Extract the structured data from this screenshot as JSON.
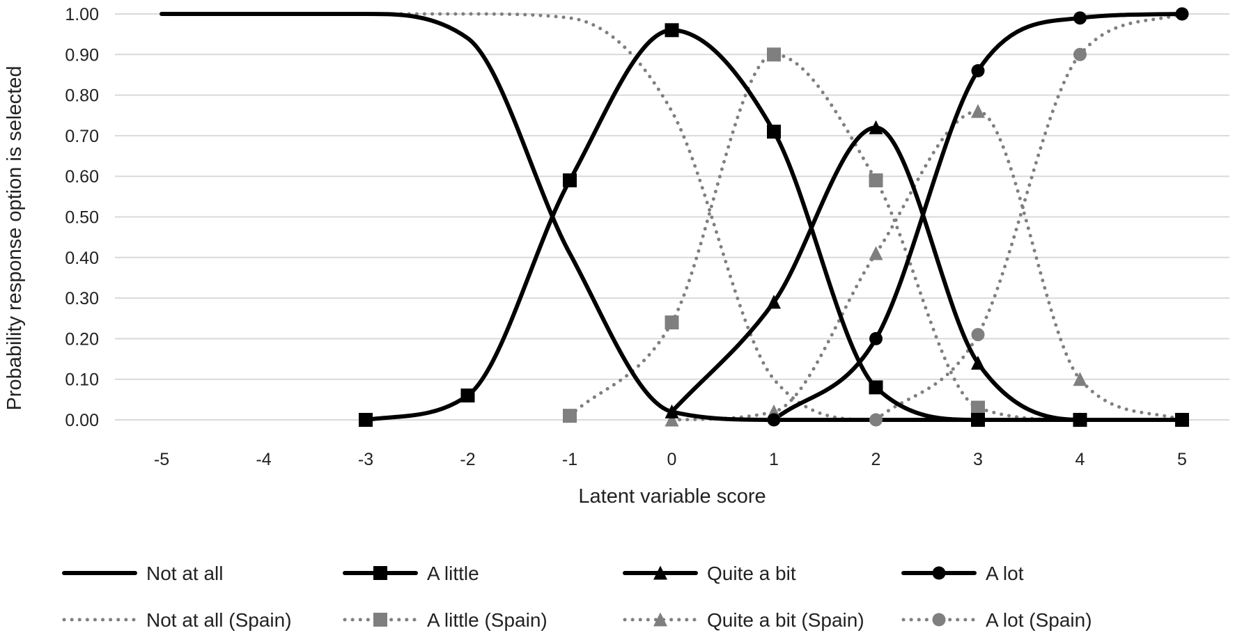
{
  "chart_data": {
    "type": "line",
    "title": "",
    "xlabel": "Latent variable score",
    "ylabel": "Probability response option is selected",
    "xlim": [
      -5,
      5
    ],
    "ylim": [
      0,
      1
    ],
    "x_ticks": [
      "-5",
      "-4",
      "-3",
      "-2",
      "-1",
      "0",
      "1",
      "2",
      "3",
      "4",
      "5"
    ],
    "y_ticks": [
      "0.00",
      "0.10",
      "0.20",
      "0.30",
      "0.40",
      "0.50",
      "0.60",
      "0.70",
      "0.80",
      "0.90",
      "1.00"
    ],
    "grid": "horizontal",
    "legend_position": "bottom",
    "series": [
      {
        "name": "Not at all",
        "style": "solid",
        "marker": "none",
        "color": "#000000",
        "x": [
          -5,
          -4,
          -3,
          -2,
          -1,
          0,
          1,
          2,
          3,
          4,
          5
        ],
        "y": [
          1.0,
          1.0,
          1.0,
          0.94,
          0.41,
          0.02,
          0.0,
          0.0,
          0.0,
          0.0,
          0.0
        ]
      },
      {
        "name": "A little",
        "style": "solid",
        "marker": "square",
        "color": "#000000",
        "x": [
          -3,
          -2,
          -1,
          0,
          1,
          2,
          3,
          4,
          5
        ],
        "y": [
          0.0,
          0.06,
          0.59,
          0.96,
          0.71,
          0.08,
          0.0,
          0.0,
          0.0
        ]
      },
      {
        "name": "Quite a bit",
        "style": "solid",
        "marker": "triangle",
        "color": "#000000",
        "x": [
          0,
          1,
          2,
          3,
          4,
          5
        ],
        "y": [
          0.02,
          0.29,
          0.72,
          0.14,
          0.0,
          0.0
        ]
      },
      {
        "name": "A lot",
        "style": "solid",
        "marker": "circle",
        "color": "#000000",
        "x": [
          1,
          2,
          3,
          4,
          5
        ],
        "y": [
          0.0,
          0.2,
          0.86,
          0.99,
          1.0
        ]
      },
      {
        "name": "Not at all (Spain)",
        "style": "dotted",
        "marker": "none",
        "color": "#7f7f7f",
        "x": [
          -5,
          -4,
          -3,
          -2,
          -1,
          0,
          1,
          2,
          3,
          4,
          5
        ],
        "y": [
          1.0,
          1.0,
          1.0,
          1.0,
          0.99,
          0.76,
          0.1,
          0.0,
          0.0,
          0.0,
          0.0
        ]
      },
      {
        "name": "A little (Spain)",
        "style": "dotted",
        "marker": "square",
        "color": "#7f7f7f",
        "x": [
          -1,
          0,
          1,
          2,
          3,
          4,
          5
        ],
        "y": [
          0.01,
          0.24,
          0.9,
          0.59,
          0.03,
          0.0,
          0.0
        ]
      },
      {
        "name": "Quite a bit (Spain)",
        "style": "dotted",
        "marker": "triangle",
        "color": "#7f7f7f",
        "x": [
          0,
          1,
          2,
          3,
          4,
          5
        ],
        "y": [
          0.0,
          0.02,
          0.41,
          0.76,
          0.1,
          0.0
        ]
      },
      {
        "name": "A lot (Spain)",
        "style": "dotted",
        "marker": "circle",
        "color": "#7f7f7f",
        "x": [
          2,
          3,
          4,
          5
        ],
        "y": [
          0.0,
          0.21,
          0.9,
          1.0
        ]
      }
    ]
  }
}
